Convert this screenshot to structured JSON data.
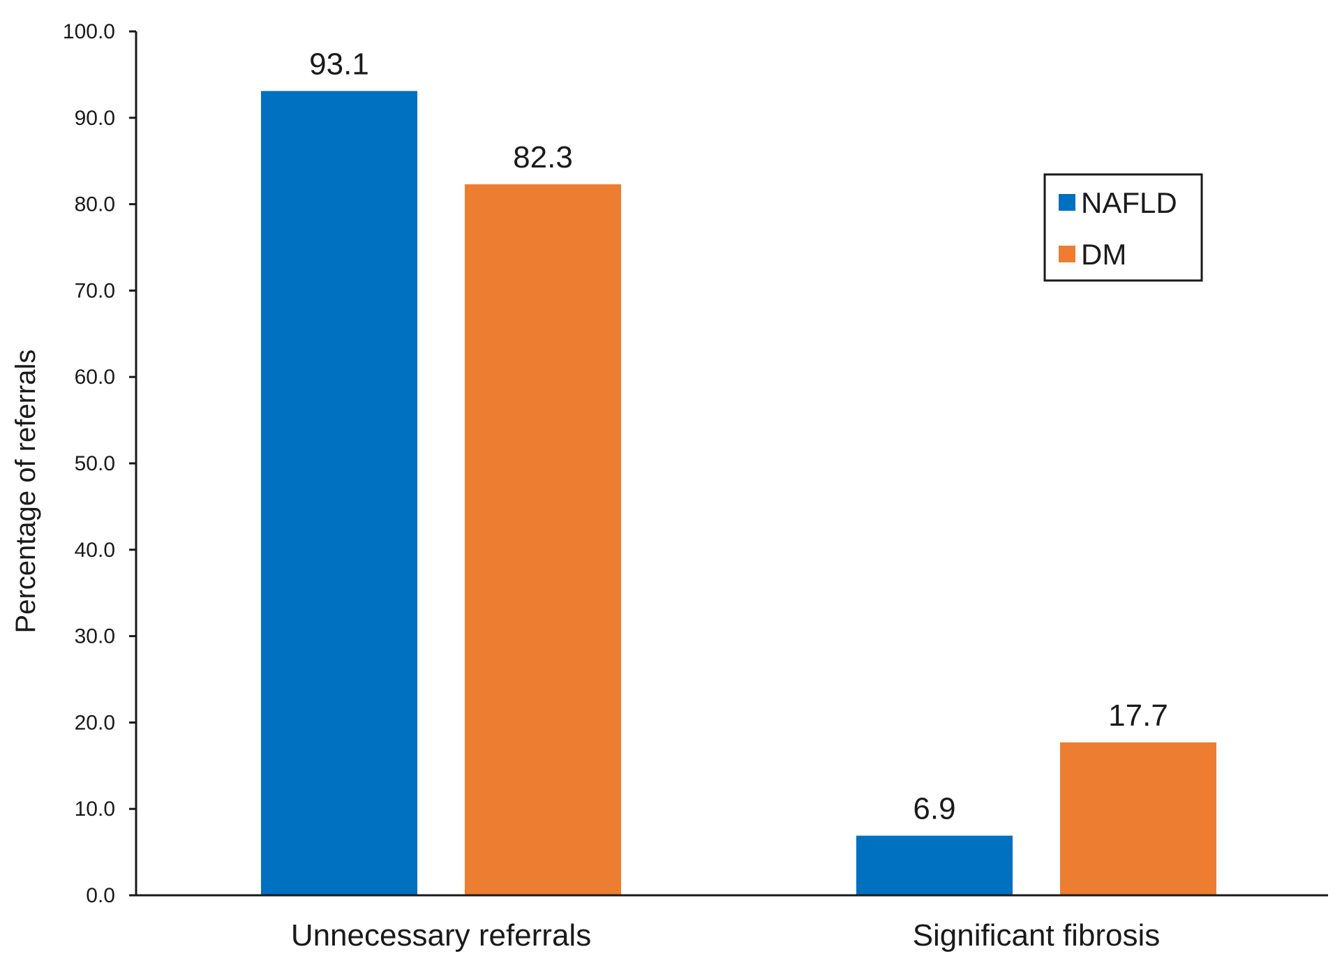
{
  "chart_data": {
    "type": "bar",
    "title": "",
    "xlabel": "",
    "ylabel": "Percentage of referrals",
    "ylim": [
      0,
      100
    ],
    "yticks": [
      0,
      10,
      20,
      30,
      40,
      50,
      60,
      70,
      80,
      90,
      100
    ],
    "ytick_labels": [
      "0.0",
      "10.0",
      "20.0",
      "30.0",
      "40.0",
      "50.0",
      "60.0",
      "70.0",
      "80.0",
      "90.0",
      "100.0"
    ],
    "categories": [
      "Unnecessary referrals",
      "Significant fibrosis"
    ],
    "series": [
      {
        "name": "NAFLD",
        "color": "#0070C0",
        "values": [
          93.1,
          6.9
        ],
        "labels": [
          "93.1",
          "6.9"
        ]
      },
      {
        "name": "DM",
        "color": "#ED7D31",
        "values": [
          82.3,
          17.7
        ],
        "labels": [
          "82.3",
          "17.7"
        ]
      }
    ],
    "grid": false,
    "legend": {
      "position": "right",
      "entries": [
        "NAFLD",
        "DM"
      ]
    }
  }
}
